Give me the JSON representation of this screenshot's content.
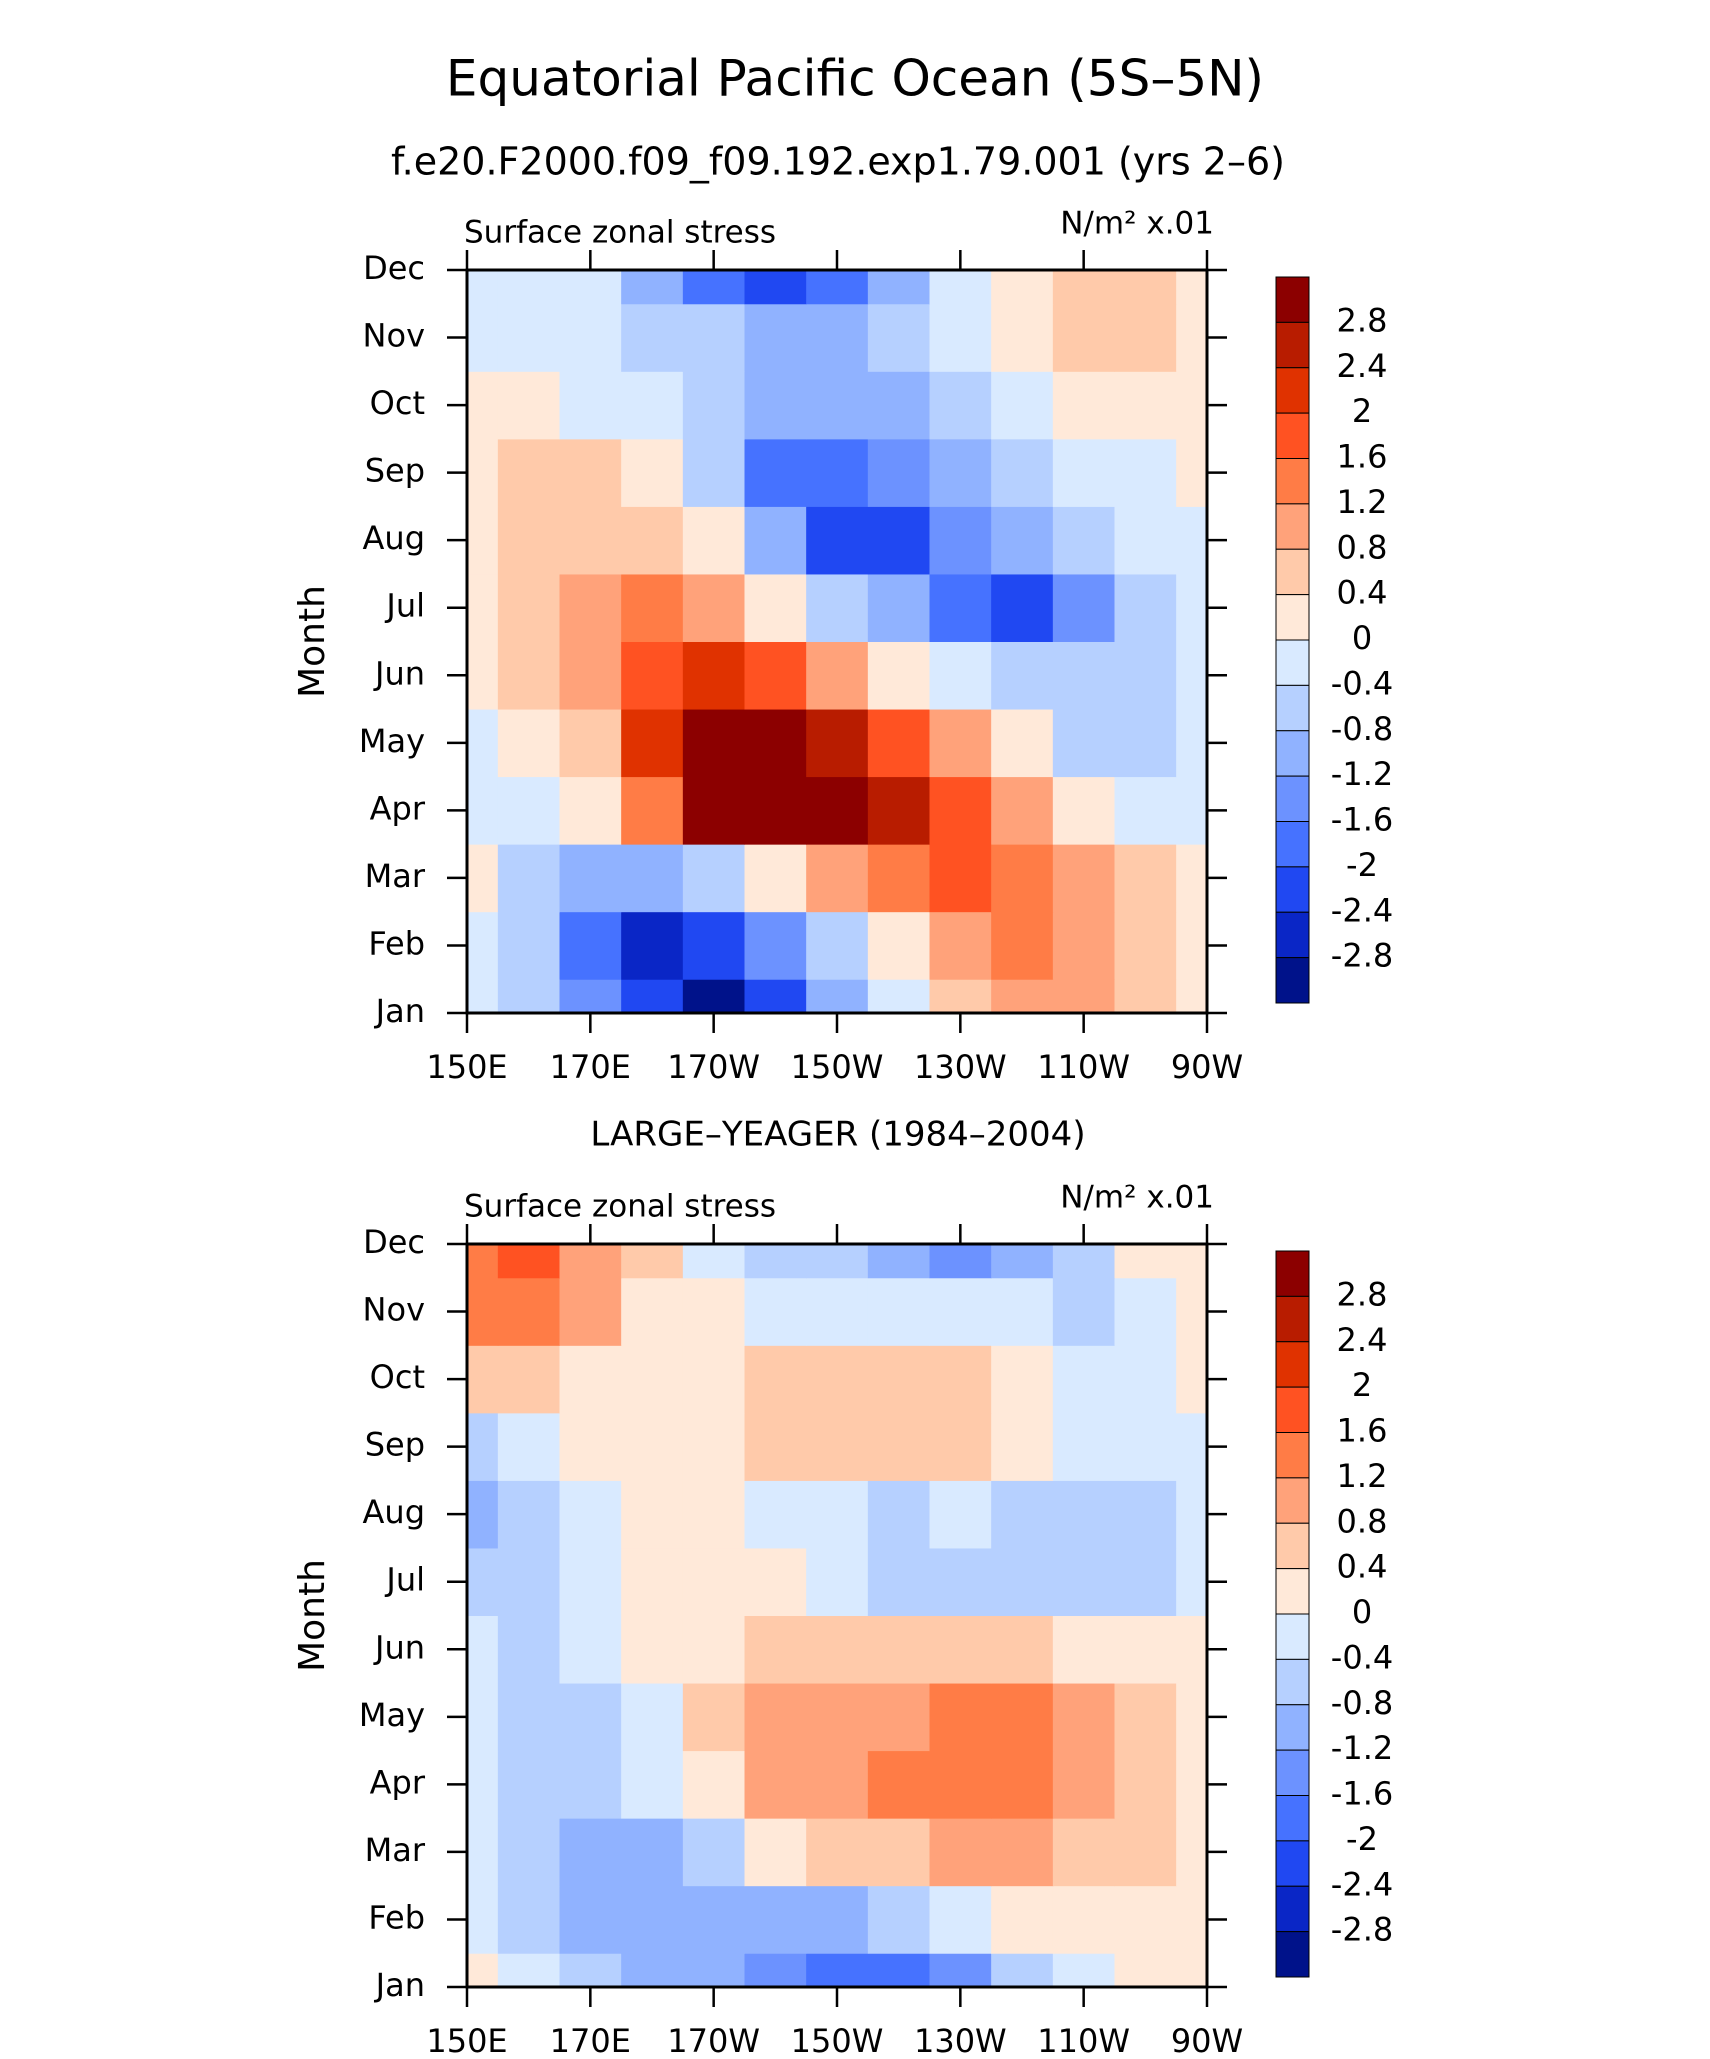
{
  "title": "Equatorial Pacific Ocean (5S–5N)",
  "chart_data": [
    {
      "type": "contour",
      "title": "f.e20.F2000.f09_f09.192.exp1.79.001 (yrs 2–6)",
      "left_label": "Surface zonal stress",
      "right_label": "N/m² x.01",
      "ylabel": "Month",
      "x": [
        150,
        160,
        170,
        180,
        190,
        200,
        210,
        220,
        230,
        240,
        250,
        260,
        270
      ],
      "categories": [
        "Jan",
        "Feb",
        "Mar",
        "Apr",
        "May",
        "Jun",
        "Jul",
        "Aug",
        "Sep",
        "Oct",
        "Nov",
        "Dec"
      ],
      "xlim": [
        150,
        270
      ],
      "xticks": [
        {
          "value": 150,
          "label": "150E"
        },
        {
          "value": 170,
          "label": "170E"
        },
        {
          "value": 190,
          "label": "170W"
        },
        {
          "value": 210,
          "label": "150W"
        },
        {
          "value": 230,
          "label": "130W"
        },
        {
          "value": 250,
          "label": "110W"
        },
        {
          "value": 270,
          "label": "90W"
        }
      ],
      "levels": [
        2.8,
        2.4,
        2,
        1.6,
        1.2,
        0.8,
        0.4,
        0,
        -0.4,
        -0.8,
        -1.2,
        -1.6,
        -2,
        -2.4,
        -2.8
      ],
      "colors": [
        "#8c0000",
        "#b81c00",
        "#e03200",
        "#ff5222",
        "#ff7c46",
        "#ffa27a",
        "#ffcaaa",
        "#ffe9d9",
        "#d9eaff",
        "#b6d0ff",
        "#90b2ff",
        "#6c92ff",
        "#4672ff",
        "#2048f2",
        "#0a26c6",
        "#00128a"
      ],
      "values": [
        [
          -0.2,
          -0.6,
          -1.4,
          -2.2,
          -3.0,
          -2.2,
          -1.2,
          -0.2,
          0.6,
          1.0,
          0.8,
          0.4,
          0.2
        ],
        [
          -0.2,
          -0.8,
          -1.8,
          -2.6,
          -2.4,
          -1.4,
          -0.6,
          0.2,
          0.9,
          1.4,
          1.0,
          0.6,
          0.2
        ],
        [
          0.2,
          -0.5,
          -1.0,
          -1.0,
          -0.6,
          0.3,
          1.0,
          1.4,
          1.8,
          1.4,
          0.8,
          0.4,
          0.1
        ],
        [
          -0.2,
          -0.2,
          0.2,
          1.4,
          2.9,
          3.0,
          3.0,
          2.6,
          1.6,
          0.8,
          0.2,
          -0.3,
          -0.2
        ],
        [
          -0.2,
          0.1,
          0.6,
          2.0,
          3.0,
          3.0,
          2.4,
          1.6,
          0.8,
          0.2,
          -0.5,
          -0.5,
          -0.3
        ],
        [
          0.2,
          0.5,
          0.9,
          1.8,
          2.2,
          1.6,
          0.8,
          0.2,
          -0.4,
          -0.6,
          -0.6,
          -0.5,
          -0.3
        ],
        [
          0.2,
          0.6,
          1.0,
          1.2,
          0.8,
          0.2,
          -0.5,
          -1.2,
          -1.8,
          -2.4,
          -1.4,
          -0.6,
          -0.3
        ],
        [
          0.3,
          0.6,
          0.7,
          0.5,
          0.1,
          -1.2,
          -2.2,
          -2.1,
          -1.6,
          -1.2,
          -0.6,
          -0.4,
          -0.2
        ],
        [
          0.3,
          0.5,
          0.6,
          0.2,
          -0.6,
          -1.8,
          -2.0,
          -1.6,
          -1.0,
          -0.6,
          -0.4,
          -0.2,
          0.1
        ],
        [
          0.2,
          0.2,
          -0.2,
          -0.3,
          -0.8,
          -1.0,
          -1.0,
          -1.0,
          -0.7,
          -0.3,
          0.1,
          0.2,
          0.2
        ],
        [
          -0.2,
          -0.3,
          -0.3,
          -0.6,
          -0.8,
          -1.0,
          -1.2,
          -0.8,
          -0.3,
          0.2,
          0.5,
          0.5,
          0.2
        ],
        [
          -0.2,
          -0.2,
          -0.4,
          -0.9,
          -2.0,
          -2.2,
          -1.8,
          -1.0,
          -0.3,
          0.3,
          0.5,
          0.5,
          0.2
        ]
      ]
    },
    {
      "type": "contour",
      "title": "LARGE–YEAGER (1984–2004)",
      "left_label": "Surface zonal stress",
      "right_label": "N/m² x.01",
      "ylabel": "Month",
      "x": [
        150,
        160,
        170,
        180,
        190,
        200,
        210,
        220,
        230,
        240,
        250,
        260,
        270
      ],
      "categories": [
        "Jan",
        "Feb",
        "Mar",
        "Apr",
        "May",
        "Jun",
        "Jul",
        "Aug",
        "Sep",
        "Oct",
        "Nov",
        "Dec"
      ],
      "xlim": [
        150,
        270
      ],
      "xticks": [
        {
          "value": 150,
          "label": "150E"
        },
        {
          "value": 170,
          "label": "170E"
        },
        {
          "value": 190,
          "label": "170W"
        },
        {
          "value": 210,
          "label": "150W"
        },
        {
          "value": 230,
          "label": "130W"
        },
        {
          "value": 250,
          "label": "110W"
        },
        {
          "value": 270,
          "label": "90W"
        }
      ],
      "levels": [
        2.8,
        2.4,
        2,
        1.6,
        1.2,
        0.8,
        0.4,
        0,
        -0.4,
        -0.8,
        -1.2,
        -1.6,
        -2,
        -2.4,
        -2.8
      ],
      "colors": [
        "#8c0000",
        "#b81c00",
        "#e03200",
        "#ff5222",
        "#ff7c46",
        "#ffa27a",
        "#ffcaaa",
        "#ffe9d9",
        "#d9eaff",
        "#b6d0ff",
        "#90b2ff",
        "#6c92ff",
        "#4672ff",
        "#2048f2",
        "#0a26c6",
        "#00128a"
      ],
      "values": [
        [
          0.1,
          -0.3,
          -0.6,
          -1.0,
          -1.2,
          -1.6,
          -1.8,
          -1.8,
          -1.4,
          -0.8,
          -0.3,
          0.1,
          0.1
        ],
        [
          -0.2,
          -0.6,
          -1.0,
          -1.0,
          -1.2,
          -1.2,
          -1.0,
          -0.6,
          -0.3,
          0.1,
          0.3,
          0.3,
          0.1
        ],
        [
          -0.2,
          -0.6,
          -1.2,
          -1.2,
          -0.5,
          0.2,
          0.5,
          0.7,
          0.8,
          0.8,
          0.6,
          0.4,
          0.1
        ],
        [
          -0.3,
          -0.6,
          -0.7,
          -0.4,
          0.3,
          0.9,
          1.0,
          1.2,
          1.3,
          1.4,
          1.0,
          0.5,
          0.1
        ],
        [
          -0.3,
          -0.8,
          -0.6,
          -0.2,
          0.5,
          0.9,
          0.9,
          1.0,
          1.2,
          1.3,
          1.0,
          0.5,
          0.1
        ],
        [
          -0.4,
          -0.5,
          -0.3,
          0.1,
          0.3,
          0.5,
          0.5,
          0.5,
          0.5,
          0.4,
          0.3,
          0.2,
          0.1
        ],
        [
          -0.6,
          -0.5,
          -0.2,
          0.1,
          0.2,
          0.1,
          -0.2,
          -0.6,
          -0.5,
          -0.5,
          -0.8,
          -0.5,
          -0.2
        ],
        [
          -0.9,
          -0.5,
          -0.2,
          0.1,
          0.1,
          -0.2,
          -0.3,
          -0.5,
          -0.3,
          -0.5,
          -0.8,
          -0.6,
          -0.3
        ],
        [
          -0.6,
          -0.2,
          0.1,
          0.2,
          0.3,
          0.6,
          0.6,
          0.6,
          0.7,
          0.3,
          -0.2,
          -0.4,
          -0.2
        ],
        [
          0.6,
          0.6,
          0.3,
          0.2,
          0.2,
          0.6,
          0.6,
          0.5,
          0.5,
          0.2,
          -0.2,
          -0.3,
          0.1
        ],
        [
          1.3,
          1.2,
          0.9,
          0.3,
          0.1,
          -0.2,
          -0.3,
          -0.4,
          -0.3,
          -0.4,
          -0.5,
          -0.2,
          0.1
        ],
        [
          1.2,
          1.6,
          1.0,
          0.4,
          -0.3,
          -0.6,
          -0.8,
          -1.0,
          -1.4,
          -1.0,
          -0.5,
          0.1,
          0.1
        ]
      ]
    }
  ]
}
